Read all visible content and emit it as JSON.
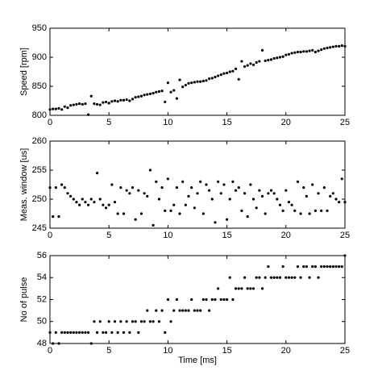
{
  "chart_data": [
    {
      "type": "scatter",
      "y_label": "Speed [rpm]",
      "color": "#000000",
      "x": [
        0,
        0.25,
        0.5,
        0.75,
        1,
        1.25,
        1.5,
        1.75,
        2,
        2.25,
        2.5,
        2.75,
        3,
        3.25,
        3.5,
        3.75,
        4,
        4.25,
        4.5,
        4.75,
        5,
        5.25,
        5.5,
        5.75,
        6,
        6.25,
        6.5,
        6.75,
        7,
        7.25,
        7.5,
        7.75,
        8,
        8.25,
        8.5,
        8.75,
        9,
        9.25,
        9.5,
        9.75,
        10,
        10.25,
        10.5,
        10.75,
        11,
        11.25,
        11.5,
        11.75,
        12,
        12.25,
        12.5,
        12.75,
        13,
        13.25,
        13.5,
        13.75,
        14,
        14.25,
        14.5,
        14.75,
        15,
        15.25,
        15.5,
        15.75,
        16,
        16.25,
        16.5,
        16.75,
        17,
        17.25,
        17.5,
        17.75,
        18,
        18.25,
        18.5,
        18.75,
        19,
        19.25,
        19.5,
        19.75,
        20,
        20.25,
        20.5,
        20.75,
        21,
        21.25,
        21.5,
        21.75,
        22,
        22.25,
        22.5,
        22.75,
        23,
        23.25,
        23.5,
        23.75,
        24,
        24.25,
        24.5,
        24.75,
        25
      ],
      "values": [
        810,
        811,
        811,
        812,
        810,
        815,
        813,
        817,
        818,
        819,
        820,
        819,
        820,
        801,
        833,
        820,
        819,
        818,
        822,
        823,
        821,
        824,
        825,
        824,
        826,
        826,
        827,
        825,
        828,
        831,
        832,
        833,
        835,
        836,
        837,
        838,
        840,
        841,
        842,
        823,
        856,
        840,
        843,
        829,
        861,
        849,
        852,
        855,
        856,
        857,
        858,
        858,
        859,
        860,
        863,
        864,
        866,
        868,
        870,
        872,
        873,
        875,
        876,
        880,
        862,
        893,
        884,
        886,
        889,
        887,
        891,
        893,
        912,
        894,
        895,
        896,
        898,
        899,
        900,
        901,
        904,
        905,
        907,
        908,
        909,
        909,
        910,
        910,
        911,
        912,
        909,
        911,
        913,
        915,
        916,
        917,
        918,
        919,
        919,
        920,
        919
      ],
      "xlim": [
        0,
        25
      ],
      "xticks": [
        0,
        5,
        10,
        15,
        20,
        25
      ],
      "ylim": [
        800,
        950
      ],
      "yticks": [
        800,
        850,
        900,
        950
      ]
    },
    {
      "type": "scatter",
      "y_label": "Meas. window [us]",
      "color": "#000000",
      "x": [
        0,
        0.25,
        0.5,
        0.75,
        1,
        1.25,
        1.5,
        1.75,
        2,
        2.25,
        2.5,
        2.75,
        3,
        3.25,
        3.5,
        3.75,
        4,
        4.25,
        4.5,
        4.75,
        5,
        5.25,
        5.5,
        5.75,
        6,
        6.25,
        6.5,
        6.75,
        7,
        7.25,
        7.5,
        7.75,
        8,
        8.25,
        8.5,
        8.75,
        9,
        9.25,
        9.5,
        9.75,
        10,
        10.25,
        10.5,
        10.75,
        11,
        11.25,
        11.5,
        11.75,
        12,
        12.25,
        12.5,
        12.75,
        13,
        13.25,
        13.5,
        13.75,
        14,
        14.25,
        14.5,
        14.75,
        15,
        15.25,
        15.5,
        15.75,
        16,
        16.25,
        16.5,
        16.75,
        17,
        17.25,
        17.5,
        17.75,
        18,
        18.25,
        18.5,
        18.75,
        19,
        19.25,
        19.5,
        19.75,
        20,
        20.25,
        20.5,
        20.75,
        21,
        21.25,
        21.5,
        21.75,
        22,
        22.25,
        22.5,
        22.75,
        23,
        23.25,
        23.5,
        23.75,
        24,
        24.25,
        24.5,
        24.75,
        25
      ],
      "values": [
        252,
        247,
        252,
        247,
        252.5,
        252,
        251,
        250.5,
        250,
        249.5,
        249,
        250,
        249.5,
        249,
        250,
        249.5,
        254.5,
        250,
        249,
        248.5,
        249,
        252.5,
        249.5,
        247.5,
        252,
        247.5,
        251.5,
        251,
        252,
        246.5,
        251.5,
        247.5,
        251,
        250.5,
        255,
        245.5,
        253,
        250,
        252,
        248,
        253.5,
        248,
        249,
        252,
        247.5,
        253,
        249,
        250.5,
        252,
        248.5,
        251,
        253,
        247.5,
        252.5,
        251.5,
        250,
        246,
        253,
        251,
        252.5,
        246.5,
        250,
        253,
        251.5,
        252,
        248,
        251,
        247,
        252.5,
        250,
        248.5,
        251.5,
        250.5,
        247.5,
        251,
        251.5,
        251,
        250,
        249,
        248,
        251.5,
        249.5,
        249,
        248,
        253,
        247.5,
        252,
        250.5,
        247.5,
        252.5,
        248,
        251,
        248,
        252,
        248,
        250.5,
        251,
        250,
        249.5,
        253.5,
        249.5
      ],
      "xlim": [
        0,
        25
      ],
      "xticks": [
        0,
        5,
        10,
        15,
        20,
        25
      ],
      "ylim": [
        245,
        260
      ],
      "yticks": [
        245,
        250,
        255,
        260
      ]
    },
    {
      "type": "scatter",
      "y_label": "No of pulse",
      "x_label": "Time [ms]",
      "color": "#000000",
      "x": [
        0,
        0.25,
        0.5,
        0.75,
        1,
        1.25,
        1.5,
        1.75,
        2,
        2.25,
        2.5,
        2.75,
        3,
        3.25,
        3.5,
        3.75,
        4,
        4.25,
        4.5,
        4.75,
        5,
        5.25,
        5.5,
        5.75,
        6,
        6.25,
        6.5,
        6.75,
        7,
        7.25,
        7.5,
        7.75,
        8,
        8.25,
        8.5,
        8.75,
        9,
        9.25,
        9.5,
        9.75,
        10,
        10.25,
        10.5,
        10.75,
        11,
        11.25,
        11.5,
        11.75,
        12,
        12.25,
        12.5,
        12.75,
        13,
        13.25,
        13.5,
        13.75,
        14,
        14.25,
        14.5,
        14.75,
        15,
        15.25,
        15.5,
        15.75,
        16,
        16.25,
        16.5,
        16.75,
        17,
        17.25,
        17.5,
        17.75,
        18,
        18.25,
        18.5,
        18.75,
        19,
        19.25,
        19.5,
        19.75,
        20,
        20.25,
        20.5,
        20.75,
        21,
        21.25,
        21.5,
        21.75,
        22,
        22.25,
        22.5,
        22.75,
        23,
        23.25,
        23.5,
        23.75,
        24,
        24.25,
        24.5,
        24.75,
        25
      ],
      "values": [
        49,
        48,
        49,
        48,
        49,
        49,
        49,
        49,
        49,
        49,
        49,
        49,
        49,
        49,
        48,
        50,
        49,
        50,
        49,
        49,
        50,
        49,
        50,
        49,
        50,
        49,
        50,
        49,
        50,
        50,
        49,
        50,
        50,
        51,
        50,
        50,
        51,
        50,
        51,
        49,
        52,
        50,
        51,
        52,
        51,
        51,
        51,
        51,
        52,
        51,
        51,
        51,
        52,
        52,
        51,
        52,
        52,
        53,
        52,
        52,
        52,
        54,
        52,
        53,
        53,
        53,
        54,
        53,
        53,
        53,
        54,
        54,
        53,
        54,
        55,
        54,
        54,
        54,
        54,
        55,
        54,
        54,
        54,
        54,
        55,
        54,
        55,
        55,
        54,
        55,
        55,
        54,
        55,
        55,
        55,
        55,
        55,
        55,
        55,
        55,
        56
      ],
      "xlim": [
        0,
        25
      ],
      "xticks": [
        0,
        5,
        10,
        15,
        20,
        25
      ],
      "ylim": [
        48,
        56
      ],
      "yticks": [
        48,
        50,
        52,
        54,
        56
      ]
    }
  ]
}
